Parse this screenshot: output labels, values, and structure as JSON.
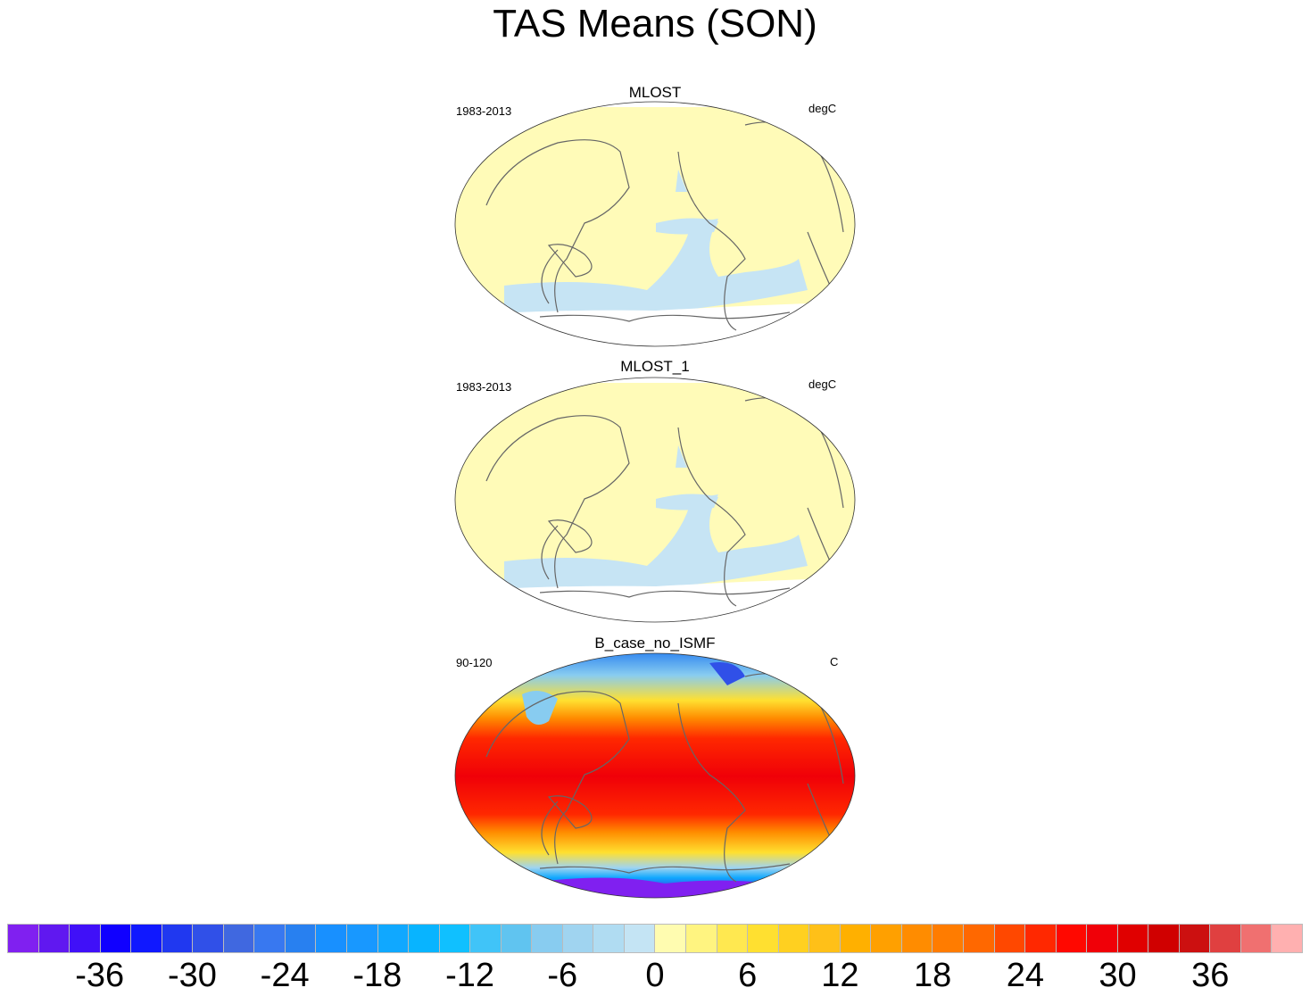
{
  "title": "TAS Means (SON)",
  "panels": [
    {
      "title": "MLOST",
      "left": "1983-2013",
      "right": "degC",
      "style": "obs"
    },
    {
      "title": "MLOST_1",
      "left": "1983-2013",
      "right": "degC",
      "style": "obs"
    },
    {
      "title": "B_case_no_ISMF",
      "left": "90-120",
      "right": "C",
      "style": "model"
    }
  ],
  "colorbar": {
    "levels_min": -40,
    "levels_max": 40,
    "step": 2,
    "labels": [
      "-36",
      "-30",
      "-24",
      "-18",
      "-12",
      "-6",
      "0",
      "6",
      "12",
      "18",
      "24",
      "30",
      "36"
    ],
    "label_values": [
      -36,
      -30,
      -24,
      -18,
      -12,
      -6,
      0,
      6,
      12,
      18,
      24,
      30,
      36
    ],
    "colors": [
      "#8020f0",
      "#6018f0",
      "#4010f8",
      "#1000ff",
      "#1018ff",
      "#2038f0",
      "#3050e8",
      "#4068e0",
      "#3878f0",
      "#2880f0",
      "#1890ff",
      "#1898ff",
      "#10a8ff",
      "#08b4ff",
      "#10c0ff",
      "#40c4f8",
      "#60c4f0",
      "#88ccf0",
      "#a0d4f0",
      "#b0dcf2",
      "#c4e4f4",
      "#fffcb0",
      "#fff480",
      "#ffe850",
      "#ffe030",
      "#ffd020",
      "#ffc018",
      "#ffb000",
      "#ffa000",
      "#ff8c00",
      "#ff7c00",
      "#ff6800",
      "#ff4800",
      "#ff2800",
      "#ff0800",
      "#f00008",
      "#e00000",
      "#d00000",
      "#cc1010",
      "#e04040",
      "#f07070",
      "#ffb0b0"
    ]
  }
}
